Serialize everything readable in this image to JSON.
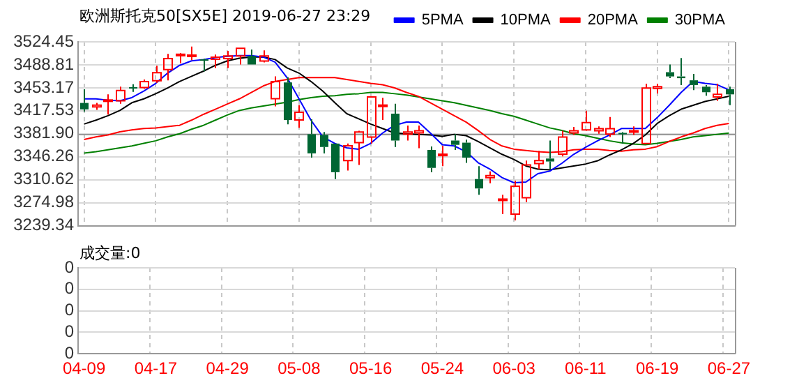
{
  "chart_data": [
    {
      "type": "candlestick",
      "title": "欧洲斯托克50[SX5E] 2019-06-27 23:29",
      "categories": [
        "04-09",
        null,
        null,
        null,
        null,
        null,
        "04-17",
        null,
        null,
        null,
        null,
        null,
        "04-29",
        null,
        null,
        null,
        null,
        null,
        "05-08",
        null,
        null,
        null,
        null,
        null,
        "05-16",
        null,
        null,
        null,
        null,
        null,
        "05-24",
        null,
        null,
        null,
        null,
        null,
        "06-03",
        null,
        null,
        null,
        null,
        null,
        "06-11",
        null,
        null,
        null,
        null,
        null,
        "06-19",
        null,
        null,
        null,
        null,
        null,
        "06-27"
      ],
      "ohlc": [
        [
          3429.7,
          3450.9,
          3416.4,
          3419.7
        ],
        [
          3423.7,
          3429.7,
          3419.1,
          3426.4
        ],
        [
          3432.3,
          3443.0,
          3411.8,
          3434.3
        ],
        [
          3433.0,
          3454.9,
          3428.4,
          3448.9
        ],
        [
          3454.2,
          3458.8,
          3446.9,
          3452.9
        ],
        [
          3453.5,
          3466.1,
          3451.6,
          3462.8
        ],
        [
          3464.1,
          3487.3,
          3460.8,
          3476.7
        ],
        [
          3481.4,
          3505.9,
          3464.8,
          3498.6
        ],
        [
          3503.2,
          3507.2,
          3491.3,
          3505.2
        ],
        [
          3502.6,
          3517.2,
          3496.0,
          3503.9
        ],
        [
          3497.3,
          3498.6,
          3478.7,
          3496.0
        ],
        [
          3497.3,
          3504.6,
          3484.0,
          3500.6
        ],
        [
          3498.6,
          3510.5,
          3484.0,
          3502.6
        ],
        [
          3502.6,
          3514.5,
          3489.3,
          3514.5
        ],
        [
          3502.6,
          3512.5,
          3489.3,
          3489.3
        ],
        [
          3494.6,
          3511.2,
          3492.6,
          3502.6
        ],
        [
          3436.3,
          3470.8,
          3424.4,
          3462.8
        ],
        [
          3461.5,
          3469.5,
          3396.6,
          3403.2
        ],
        [
          3403.2,
          3426.4,
          3391.2,
          3415.1
        ],
        [
          3381.3,
          3404.5,
          3344.9,
          3351.5
        ],
        [
          3380.0,
          3384.6,
          3351.5,
          3361.4
        ],
        [
          3366.7,
          3366.7,
          3311.7,
          3322.3
        ],
        [
          3340.2,
          3366.7,
          3325.0,
          3363.4
        ],
        [
          3368.1,
          3386.6,
          3333.6,
          3384.6
        ],
        [
          3376.7,
          3439.0,
          3366.7,
          3439.0
        ],
        [
          3424.4,
          3437.6,
          3403.2,
          3426.4
        ],
        [
          3413.1,
          3428.4,
          3361.4,
          3371.4
        ],
        [
          3381.3,
          3394.6,
          3371.4,
          3384.6
        ],
        [
          3383.3,
          3394.6,
          3359.4,
          3386.6
        ],
        [
          3356.8,
          3362.1,
          3322.3,
          3329.0
        ],
        [
          3348.2,
          3363.4,
          3331.6,
          3350.2
        ],
        [
          3371.4,
          3381.3,
          3356.8,
          3364.7
        ],
        [
          3368.1,
          3372.7,
          3336.9,
          3344.9
        ],
        [
          3311.7,
          3331.6,
          3287.2,
          3297.1
        ],
        [
          3313.7,
          3323.6,
          3305.1,
          3317.0
        ],
        [
          3278.6,
          3287.2,
          3257.4,
          3280.6
        ],
        [
          3257.4,
          3309.1,
          3247.5,
          3300.5
        ],
        [
          3282.6,
          3340.2,
          3275.9,
          3333.6
        ],
        [
          3335.6,
          3355.5,
          3327.0,
          3340.2
        ],
        [
          3343.5,
          3371.4,
          3327.0,
          3338.9
        ],
        [
          3350.2,
          3386.6,
          3346.9,
          3376.7
        ],
        [
          3383.3,
          3392.6,
          3380.0,
          3386.6
        ],
        [
          3387.9,
          3417.7,
          3386.6,
          3399.2
        ],
        [
          3386.6,
          3393.2,
          3382.0,
          3389.9
        ],
        [
          3381.3,
          3407.8,
          3376.7,
          3389.9
        ],
        [
          3383.3,
          3384.6,
          3366.7,
          3382.0
        ],
        [
          3384.6,
          3393.2,
          3380.0,
          3386.6
        ],
        [
          3366.7,
          3459.5,
          3366.7,
          3452.9
        ],
        [
          3452.2,
          3459.5,
          3444.3,
          3454.9
        ],
        [
          3477.4,
          3489.3,
          3468.1,
          3470.8
        ],
        [
          3470.8,
          3499.3,
          3457.5,
          3468.1
        ],
        [
          3464.8,
          3474.7,
          3449.6,
          3457.5
        ],
        [
          3454.9,
          3457.5,
          3441.0,
          3446.3
        ],
        [
          3439.0,
          3459.5,
          3433.0,
          3443.0
        ],
        [
          3450.9,
          3454.9,
          3426.4,
          3443.0
        ]
      ],
      "colors": [
        "#006633",
        "#ff0000",
        "#ff0000",
        "#ff0000",
        "#006633",
        "#ff0000",
        "#ff0000",
        "#ff0000",
        "#ff0000",
        "#ff0000",
        "#006633",
        "#ff0000",
        "#ff0000",
        "#ff0000",
        "#006633",
        "#ff0000",
        "#ff0000",
        "#006633",
        "#ff0000",
        "#006633",
        "#006633",
        "#006633",
        "#ff0000",
        "#ff0000",
        "#ff0000",
        "#ff0000",
        "#006633",
        "#ff0000",
        "#ff0000",
        "#006633",
        "#ff0000",
        "#006633",
        "#006633",
        "#006633",
        "#ff0000",
        "#ff0000",
        "#ff0000",
        "#ff0000",
        "#ff0000",
        "#006633",
        "#ff0000",
        "#ff0000",
        "#ff0000",
        "#ff0000",
        "#ff0000",
        "#006633",
        "#ff0000",
        "#ff0000",
        "#ff0000",
        "#006633",
        "#006633",
        "#006633",
        "#006633",
        "#ff0000",
        "#006633"
      ],
      "series": [
        {
          "name": "5PMA",
          "type": "line",
          "color": "#0000ff",
          "values": [
            3436,
            3436,
            3434,
            3433,
            3438,
            3448,
            3460,
            3476,
            3488,
            3495,
            3497,
            3500,
            3502,
            3503,
            3503,
            3501,
            3493,
            3469,
            3436,
            3403,
            3377,
            3367,
            3360,
            3358,
            3367,
            3383,
            3395,
            3400,
            3400,
            3383,
            3365,
            3363,
            3354,
            3337,
            3327,
            3314,
            3306,
            3307,
            3320,
            3324,
            3336,
            3350,
            3361,
            3371,
            3380,
            3390,
            3390,
            3390,
            3407,
            3426,
            3446,
            3463,
            3460,
            3458,
            3450
          ]
        },
        {
          "name": "10PMA",
          "type": "line",
          "color": "#000000",
          "values": [
            3397,
            3403,
            3410,
            3418,
            3430,
            3436,
            3444,
            3453,
            3463,
            3471,
            3479,
            3488,
            3495,
            3499,
            3501,
            3501,
            3497,
            3484,
            3476,
            3463,
            3448,
            3430,
            3413,
            3405,
            3397,
            3390,
            3383,
            3382,
            3381,
            3380,
            3378,
            3381,
            3379,
            3370,
            3360,
            3350,
            3342,
            3332,
            3327,
            3326,
            3329,
            3332,
            3335,
            3340,
            3349,
            3357,
            3367,
            3380,
            3398,
            3410,
            3420,
            3426,
            3432,
            3436,
            3440
          ]
        },
        {
          "name": "20PMA",
          "type": "line",
          "color": "#ff0000",
          "values": [
            3373,
            3377,
            3380,
            3385,
            3388,
            3390,
            3391,
            3393,
            3395,
            3403,
            3412,
            3420,
            3428,
            3436,
            3446,
            3456,
            3463,
            3466,
            3469,
            3469,
            3469,
            3469,
            3466,
            3463,
            3460,
            3458,
            3453,
            3446,
            3440,
            3430,
            3420,
            3410,
            3400,
            3387,
            3373,
            3363,
            3358,
            3356,
            3354,
            3353,
            3354,
            3357,
            3358,
            3358,
            3356,
            3355,
            3357,
            3358,
            3362,
            3370,
            3377,
            3383,
            3390,
            3395,
            3398
          ]
        },
        {
          "name": "30PMA",
          "type": "line",
          "color": "#008000",
          "values": [
            3352,
            3354,
            3357,
            3360,
            3363,
            3367,
            3371,
            3377,
            3382,
            3389,
            3395,
            3403,
            3411,
            3418,
            3422,
            3425,
            3428,
            3431,
            3435,
            3438,
            3440,
            3441,
            3443,
            3444,
            3446,
            3446,
            3444,
            3442,
            3439,
            3436,
            3433,
            3430,
            3426,
            3422,
            3418,
            3413,
            3409,
            3403,
            3397,
            3391,
            3387,
            3382,
            3379,
            3375,
            3371,
            3368,
            3366,
            3365,
            3367,
            3370,
            3373,
            3377,
            3379,
            3381,
            3383
          ]
        }
      ],
      "ylim": [
        3239.34,
        3524.45
      ],
      "yticks": [
        3239.34,
        3274.98,
        3310.62,
        3346.26,
        {
          "value": 3381.9,
          "label": "3381.90"
        },
        3417.53,
        3453.17,
        3488.81,
        3524.45
      ],
      "ref_lines": [
        {
          "axis": "y",
          "value": 3381.9,
          "color": "#999999"
        }
      ],
      "grid": true,
      "legend": "top right",
      "tick_labels": "y"
    },
    {
      "type": "other",
      "title": "成交量:0",
      "annotations": [
        "0",
        "0",
        "0",
        "0",
        "0"
      ]
    }
  ]
}
